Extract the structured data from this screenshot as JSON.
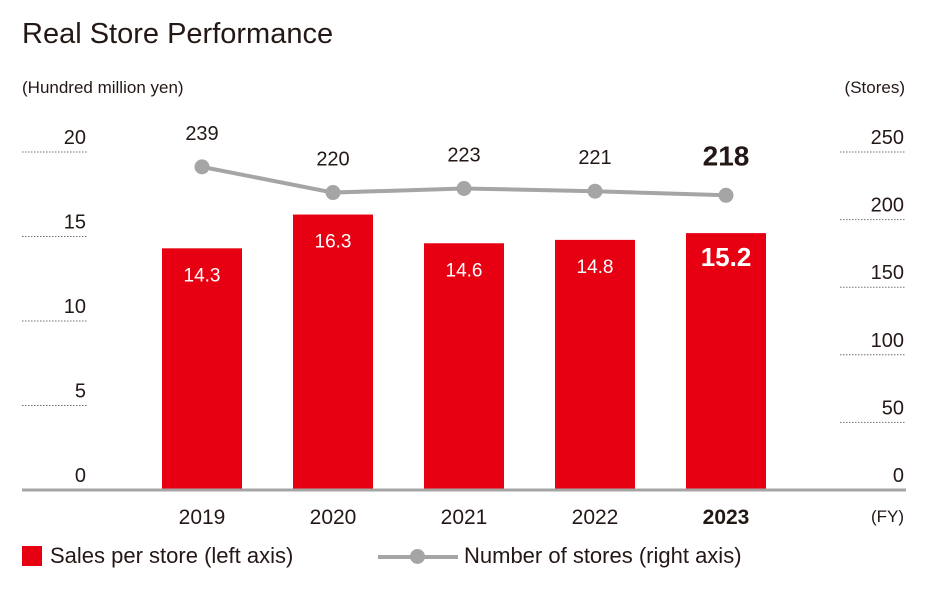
{
  "chart_data": {
    "type": "bar+line",
    "title": "Real Store Performance",
    "left_axis_unit": "(Hundred million yen)",
    "right_axis_unit": "(Stores)",
    "x_unit": "(FY)",
    "categories": [
      "2019",
      "2020",
      "2021",
      "2022",
      "2023"
    ],
    "highlight_category": "2023",
    "left_axis": {
      "ylim": [
        0,
        20
      ],
      "ticks": [
        "0",
        "5",
        "10",
        "15",
        "20"
      ]
    },
    "right_axis": {
      "ylim": [
        0,
        250
      ],
      "ticks": [
        "0",
        "50",
        "100",
        "150",
        "200",
        "250"
      ]
    },
    "series": [
      {
        "name": "Sales per store (left axis)",
        "type": "bar",
        "axis": "left",
        "values": [
          14.3,
          16.3,
          14.6,
          14.8,
          15.2
        ],
        "labels": [
          "14.3",
          "16.3",
          "14.6",
          "14.8",
          "15.2"
        ],
        "color": "#e60012"
      },
      {
        "name": "Number of stores (right axis)",
        "type": "line",
        "axis": "right",
        "values": [
          239,
          220,
          223,
          221,
          218
        ],
        "labels": [
          "239",
          "220",
          "223",
          "221",
          "218"
        ],
        "color": "#a5a5a5"
      }
    ],
    "legend_position": "bottom",
    "grid": "dotted tick marks on both axes"
  }
}
